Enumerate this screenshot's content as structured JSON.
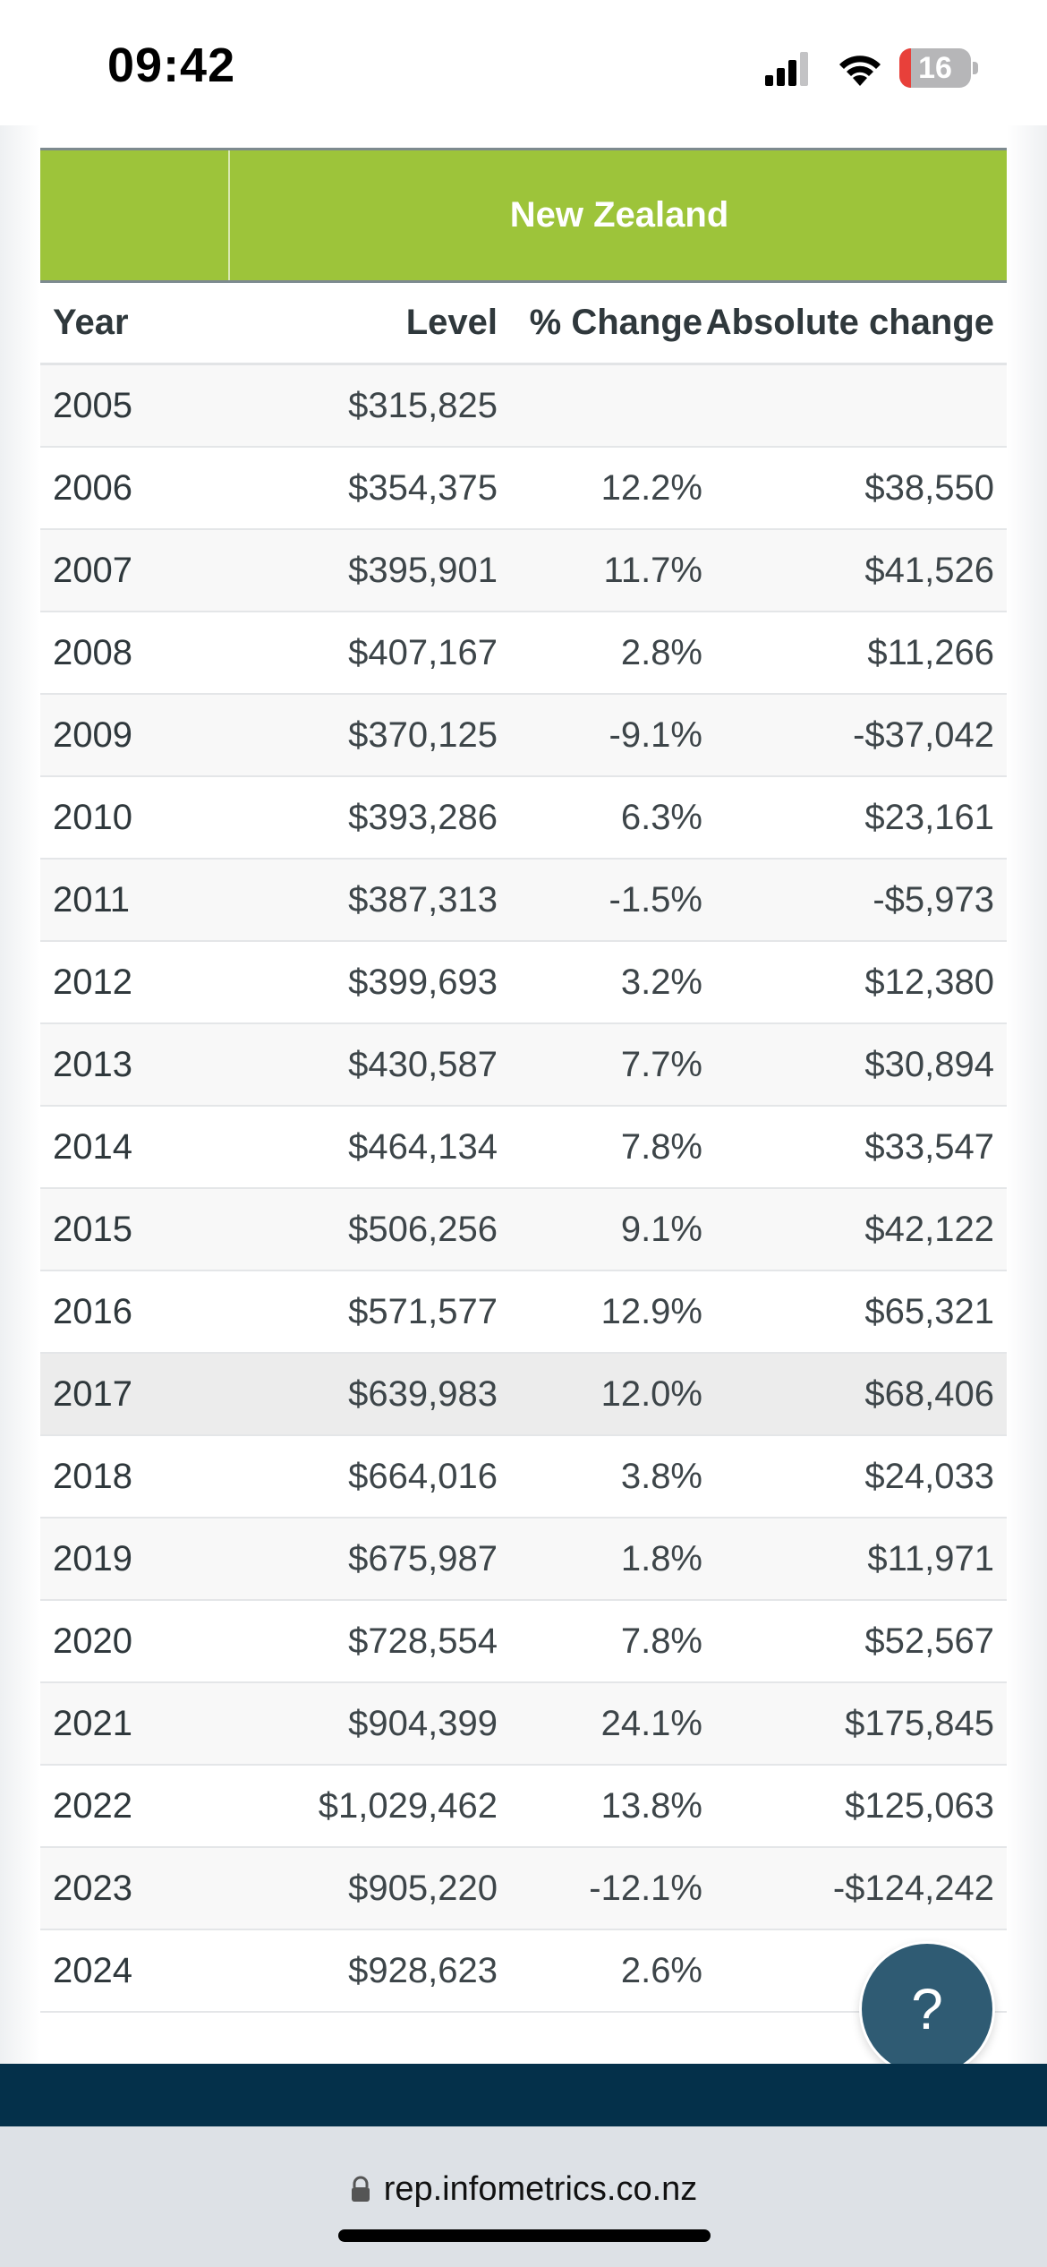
{
  "status_bar": {
    "time": "09:42",
    "battery_level": "16",
    "battery_fraction": 0.16,
    "battery_color": "#e8403a",
    "icons": [
      "signal-icon",
      "wifi-icon",
      "battery-icon"
    ]
  },
  "table": {
    "region_title": "New Zealand",
    "header_color": "#9dc43a",
    "columns": {
      "year": "Year",
      "level": "Level",
      "pct_change": "% Change",
      "abs_change": "Absolute change"
    },
    "rows": [
      {
        "year": "2005",
        "level": "$315,825",
        "pct_change": "",
        "abs_change": ""
      },
      {
        "year": "2006",
        "level": "$354,375",
        "pct_change": "12.2%",
        "abs_change": "$38,550"
      },
      {
        "year": "2007",
        "level": "$395,901",
        "pct_change": "11.7%",
        "abs_change": "$41,526"
      },
      {
        "year": "2008",
        "level": "$407,167",
        "pct_change": "2.8%",
        "abs_change": "$11,266"
      },
      {
        "year": "2009",
        "level": "$370,125",
        "pct_change": "-9.1%",
        "abs_change": "-$37,042"
      },
      {
        "year": "2010",
        "level": "$393,286",
        "pct_change": "6.3%",
        "abs_change": "$23,161"
      },
      {
        "year": "2011",
        "level": "$387,313",
        "pct_change": "-1.5%",
        "abs_change": "-$5,973"
      },
      {
        "year": "2012",
        "level": "$399,693",
        "pct_change": "3.2%",
        "abs_change": "$12,380"
      },
      {
        "year": "2013",
        "level": "$430,587",
        "pct_change": "7.7%",
        "abs_change": "$30,894"
      },
      {
        "year": "2014",
        "level": "$464,134",
        "pct_change": "7.8%",
        "abs_change": "$33,547"
      },
      {
        "year": "2015",
        "level": "$506,256",
        "pct_change": "9.1%",
        "abs_change": "$42,122"
      },
      {
        "year": "2016",
        "level": "$571,577",
        "pct_change": "12.9%",
        "abs_change": "$65,321"
      },
      {
        "year": "2017",
        "level": "$639,983",
        "pct_change": "12.0%",
        "abs_change": "$68,406"
      },
      {
        "year": "2018",
        "level": "$664,016",
        "pct_change": "3.8%",
        "abs_change": "$24,033"
      },
      {
        "year": "2019",
        "level": "$675,987",
        "pct_change": "1.8%",
        "abs_change": "$11,971"
      },
      {
        "year": "2020",
        "level": "$728,554",
        "pct_change": "7.8%",
        "abs_change": "$52,567"
      },
      {
        "year": "2021",
        "level": "$904,399",
        "pct_change": "24.1%",
        "abs_change": "$175,845"
      },
      {
        "year": "2022",
        "level": "$1,029,462",
        "pct_change": "13.8%",
        "abs_change": "$125,063"
      },
      {
        "year": "2023",
        "level": "$905,220",
        "pct_change": "-12.1%",
        "abs_change": "-$124,242"
      },
      {
        "year": "2024",
        "level": "$928,623",
        "pct_change": "2.6%",
        "abs_change": ""
      }
    ],
    "highlighted_year": "2017"
  },
  "help_button": {
    "label": "?",
    "color": "#2f5b73"
  },
  "footer": {
    "color": "#04304a"
  },
  "browser": {
    "url": "rep.infometrics.co.nz",
    "lock_icon": "lock-icon"
  }
}
